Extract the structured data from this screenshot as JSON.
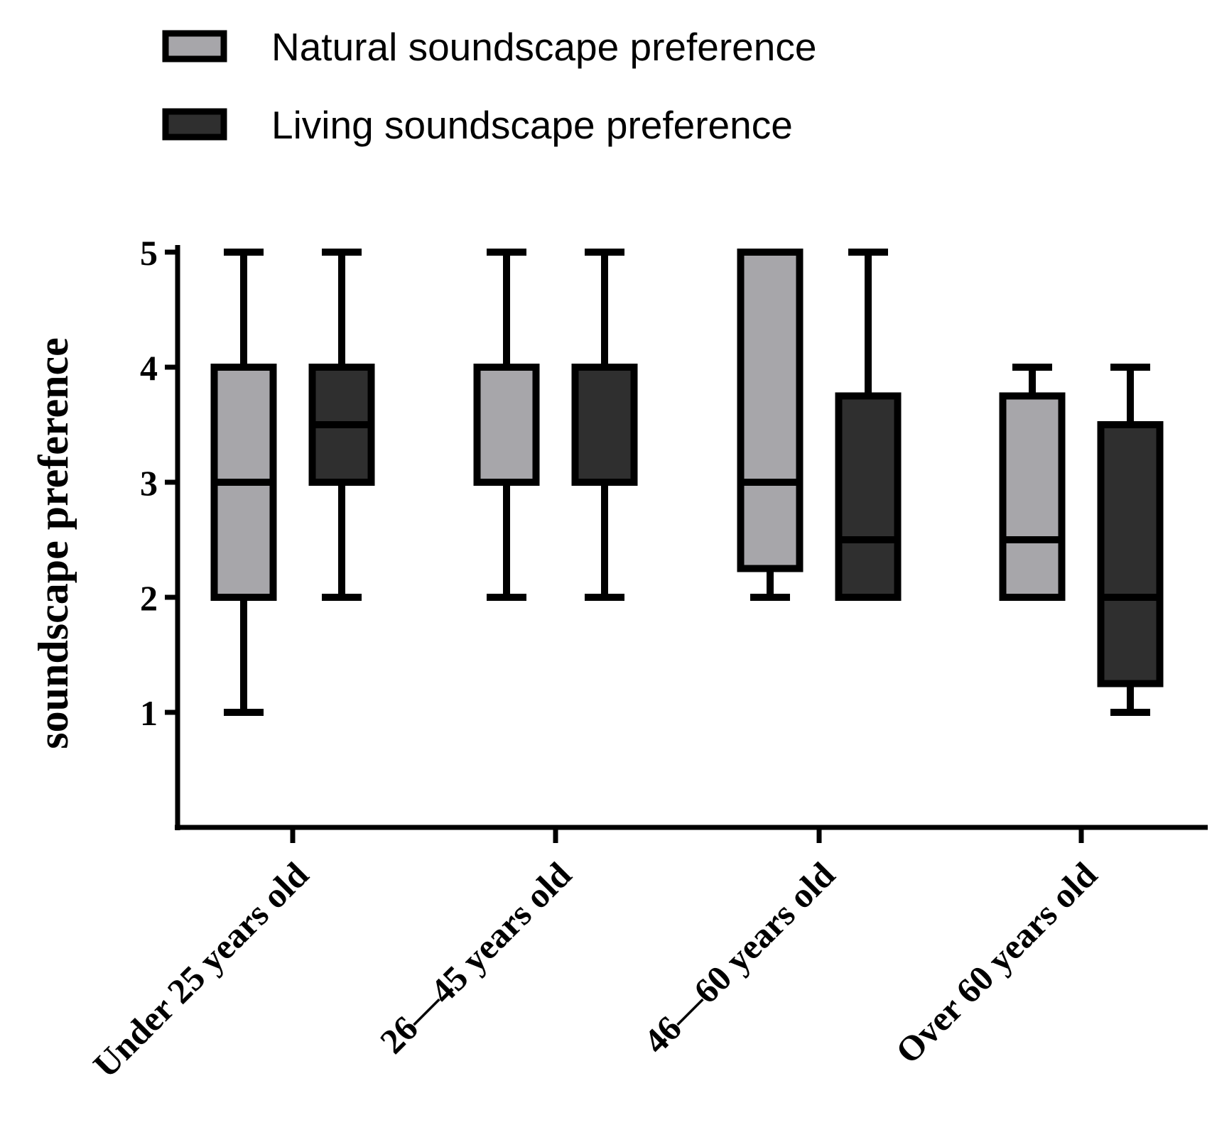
{
  "chart_data": {
    "type": "boxplot",
    "title": "",
    "xlabel": "",
    "ylabel": "soundscape preference",
    "ylim": [
      0,
      5
    ],
    "yticks": [
      1,
      2,
      3,
      4,
      5
    ],
    "grid": false,
    "legend_position": "top-left",
    "categories": [
      "Under 25 years old",
      "26—45 years old",
      "46—60 years old",
      "Over 60 years old"
    ],
    "series": [
      {
        "name": "Natural soundscape preference",
        "color": "#a7a6aa",
        "boxes": [
          {
            "min": 1,
            "q1": 2,
            "median": 3,
            "q3": 4,
            "max": 5
          },
          {
            "min": 2,
            "q1": 3,
            "median": 4,
            "q3": 4,
            "max": 5
          },
          {
            "min": 2,
            "q1": 2.25,
            "median": 3,
            "q3": 5,
            "max": 5
          },
          {
            "min": 2,
            "q1": 2,
            "median": 2.5,
            "q3": 3.75,
            "max": 4
          }
        ]
      },
      {
        "name": "Living soundscape preference",
        "color": "#2f2f2f",
        "boxes": [
          {
            "min": 2,
            "q1": 3,
            "median": 3.5,
            "q3": 4,
            "max": 5
          },
          {
            "min": 2,
            "q1": 3,
            "median": 4,
            "q3": 4,
            "max": 5
          },
          {
            "min": 2,
            "q1": 2,
            "median": 2.5,
            "q3": 3.75,
            "max": 5
          },
          {
            "min": 1,
            "q1": 1.25,
            "median": 2,
            "q3": 3.5,
            "max": 4
          }
        ]
      }
    ]
  }
}
